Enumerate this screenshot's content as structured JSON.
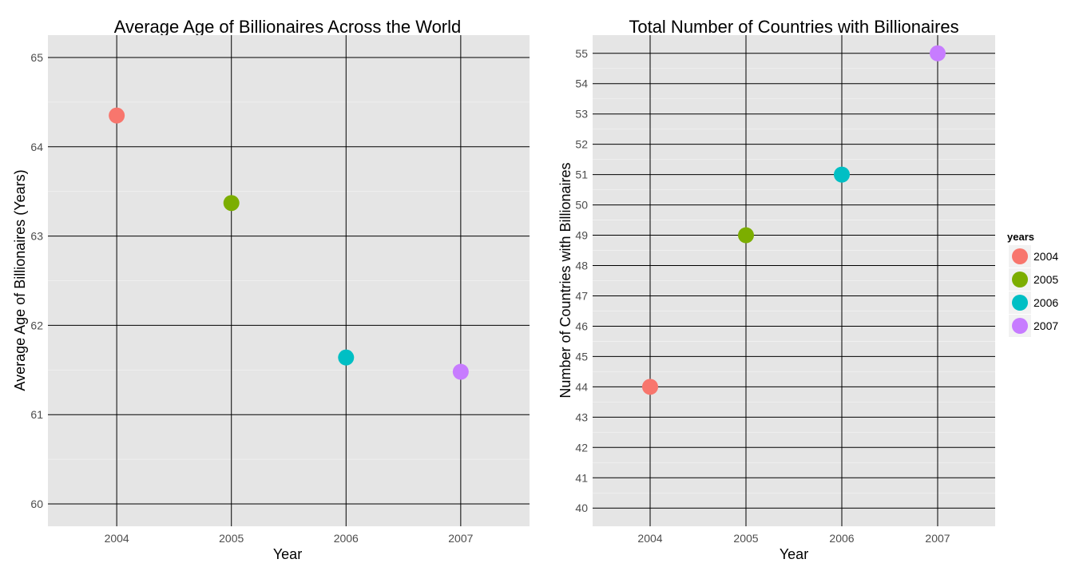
{
  "chart_data": [
    {
      "type": "scatter",
      "title": "Average Age of Billionaires Across the World",
      "xlabel": "Year",
      "ylabel": "Average Age of Billionaires (Years)",
      "categories": [
        "2004",
        "2005",
        "2006",
        "2007"
      ],
      "y_ticks": [
        60,
        61,
        62,
        63,
        64,
        65
      ],
      "ylim": [
        59.75,
        65.25
      ],
      "grid": true,
      "series": [
        {
          "name": "2004",
          "x": "2004",
          "y": 64.35,
          "color": "#F8766D"
        },
        {
          "name": "2005",
          "x": "2005",
          "y": 63.37,
          "color": "#7CAE00"
        },
        {
          "name": "2006",
          "x": "2006",
          "y": 61.64,
          "color": "#00BFC4"
        },
        {
          "name": "2007",
          "x": "2007",
          "y": 61.48,
          "color": "#C77CFF"
        }
      ]
    },
    {
      "type": "scatter",
      "title": "Total Number of Countries with Billionaires",
      "xlabel": "Year",
      "ylabel": "Number of Countries with Billionaires",
      "categories": [
        "2004",
        "2005",
        "2006",
        "2007"
      ],
      "y_ticks": [
        40,
        41,
        42,
        43,
        44,
        45,
        46,
        47,
        48,
        49,
        50,
        51,
        52,
        53,
        54,
        55
      ],
      "ylim": [
        39.4,
        55.6
      ],
      "grid": true,
      "series": [
        {
          "name": "2004",
          "x": "2004",
          "y": 44,
          "color": "#F8766D"
        },
        {
          "name": "2005",
          "x": "2005",
          "y": 49,
          "color": "#7CAE00"
        },
        {
          "name": "2006",
          "x": "2006",
          "y": 51,
          "color": "#00BFC4"
        },
        {
          "name": "2007",
          "x": "2007",
          "y": 55,
          "color": "#C77CFF"
        }
      ]
    }
  ],
  "legend": {
    "title": "years",
    "placement": "right",
    "items": [
      {
        "label": "2004",
        "color": "#F8766D"
      },
      {
        "label": "2005",
        "color": "#7CAE00"
      },
      {
        "label": "2006",
        "color": "#00BFC4"
      },
      {
        "label": "2007",
        "color": "#C77CFF"
      }
    ]
  }
}
